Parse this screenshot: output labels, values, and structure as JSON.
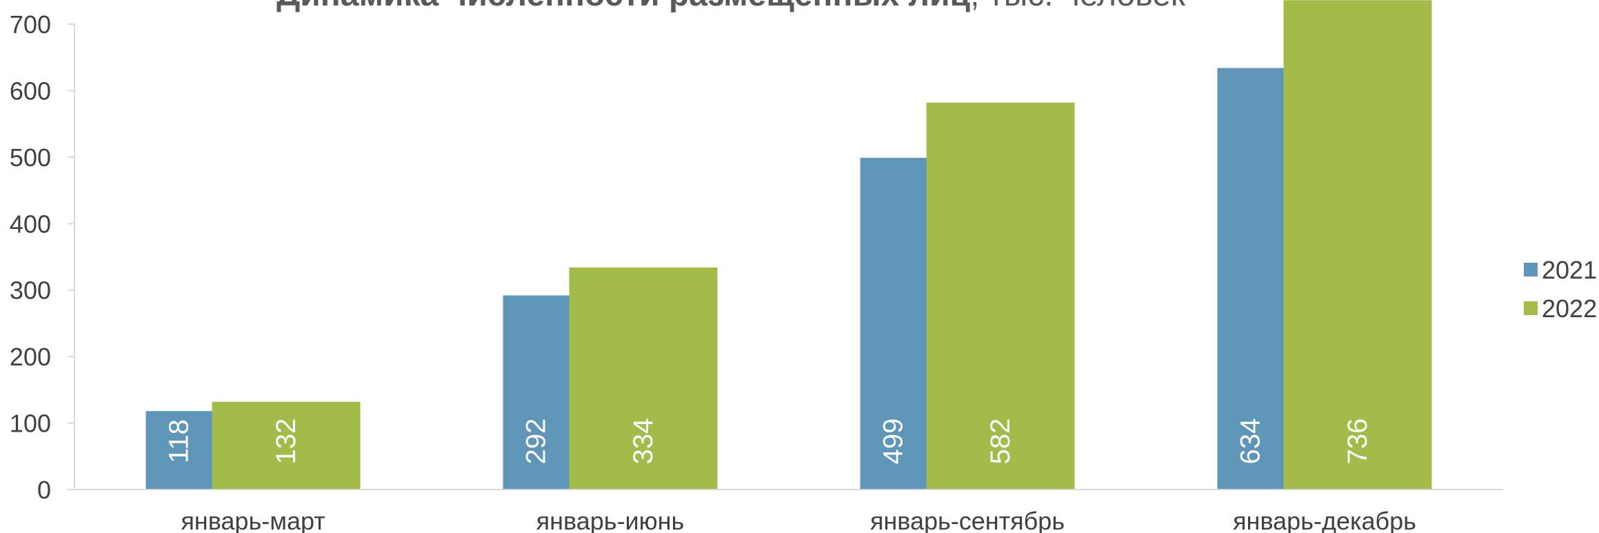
{
  "chart_data": {
    "type": "bar",
    "title": "Динамика численности размещенных лиц",
    "subtitle": ", тыс. человек",
    "categories": [
      "январь-март",
      "январь-июнь",
      "январь-сентябрь",
      "январь-декабрь"
    ],
    "series": [
      {
        "name": "2021",
        "values": [
          118,
          292,
          499,
          634
        ],
        "color": "#5f95b8",
        "labels": [
          "118",
          "292",
          "499",
          "634"
        ]
      },
      {
        "name": "2022",
        "values": [
          132,
          334,
          582,
          736
        ],
        "color": "#a3bb49",
        "labels": [
          "132",
          "334",
          "582",
          "736"
        ]
      }
    ],
    "ylim": [
      0,
      700
    ],
    "yticks": [
      "0",
      "100",
      "200",
      "300",
      "400",
      "500",
      "600",
      "700"
    ],
    "legend_position": "right",
    "grid": false
  }
}
